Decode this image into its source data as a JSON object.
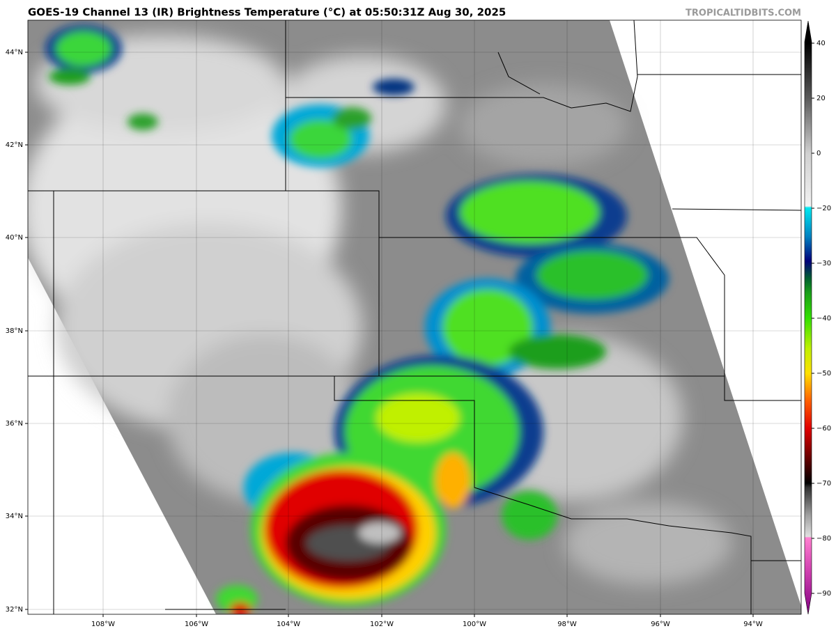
{
  "header": {
    "title": "GOES-19 Channel 13 (IR) Brightness Temperature (°C) at 05:50:31Z Aug 30, 2025",
    "watermark": "TROPICALTIDBITS.COM"
  },
  "map": {
    "latitude_labels": [
      "44°N",
      "42°N",
      "40°N",
      "38°N",
      "36°N",
      "34°N",
      "32°N"
    ],
    "longitude_labels": [
      "108°W",
      "106°W",
      "104°W",
      "102°W",
      "100°W",
      "98°W",
      "96°W",
      "94°W"
    ]
  },
  "colorbar": {
    "tick_labels": [
      "40",
      "20",
      "0",
      "−20",
      "−30",
      "−40",
      "−50",
      "−60",
      "−70",
      "−80",
      "−90"
    ]
  }
}
